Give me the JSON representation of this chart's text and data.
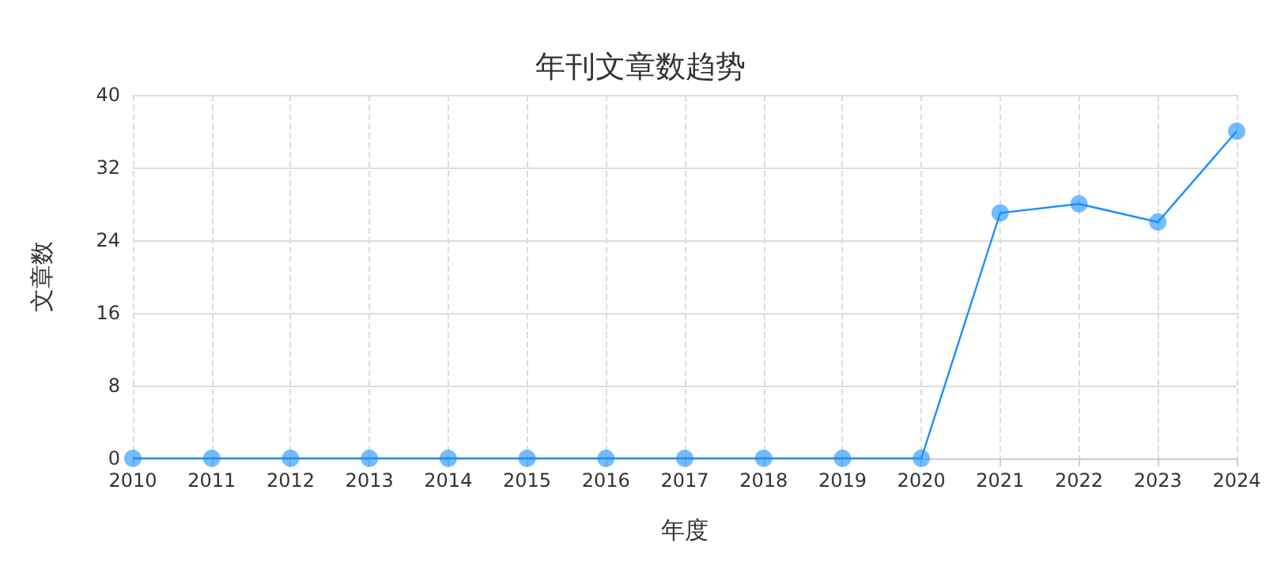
{
  "chart_data": {
    "type": "line",
    "title": "年刊文章数趋势",
    "xlabel": "年度",
    "ylabel": "文章数",
    "categories": [
      "2010",
      "2011",
      "2012",
      "2013",
      "2014",
      "2015",
      "2016",
      "2017",
      "2018",
      "2019",
      "2020",
      "2021",
      "2022",
      "2023",
      "2024"
    ],
    "series": [
      {
        "color": "#1890ff",
        "values": [
          0,
          0,
          0,
          0,
          0,
          0,
          0,
          0,
          0,
          0,
          0,
          27,
          28,
          26,
          36
        ]
      }
    ],
    "ylim": [
      0,
      40
    ],
    "yticks": [
      0,
      8,
      16,
      24,
      32,
      40
    ],
    "grid": true,
    "marker": "circle",
    "line_style": "solid"
  }
}
